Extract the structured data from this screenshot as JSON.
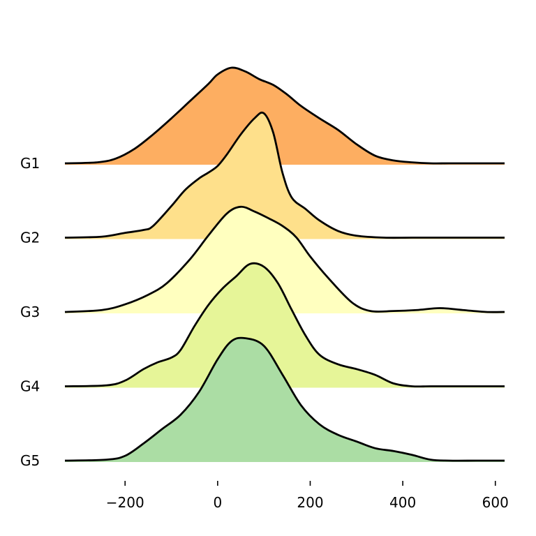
{
  "chart_data": {
    "type": "area",
    "subtype": "ridgeline",
    "title": "",
    "xlabel": "",
    "ylabel": "",
    "xlim": [
      -330,
      620
    ],
    "xticks": [
      -200,
      0,
      200,
      400,
      600
    ],
    "xtick_labels": [
      "−200",
      "0",
      "200",
      "400",
      "600"
    ],
    "grid": false,
    "categories": [
      "G1",
      "G2",
      "G3",
      "G4",
      "G5"
    ],
    "series": [
      {
        "name": "G1",
        "color": "#fdae61",
        "x": [
          -330,
          -260,
          -220,
          -180,
          -140,
          -100,
          -60,
          -20,
          0,
          30,
          60,
          90,
          120,
          150,
          180,
          220,
          260,
          300,
          340,
          380,
          420,
          460,
          500,
          560,
          620
        ],
        "y": [
          0,
          0.01,
          0.05,
          0.15,
          0.3,
          0.47,
          0.65,
          0.83,
          0.93,
          1.0,
          0.96,
          0.88,
          0.82,
          0.72,
          0.6,
          0.47,
          0.35,
          0.2,
          0.08,
          0.03,
          0.01,
          0,
          0,
          0,
          0
        ]
      },
      {
        "name": "G2",
        "color": "#fee08b",
        "x": [
          -330,
          -250,
          -200,
          -160,
          -140,
          -100,
          -70,
          -40,
          -20,
          0,
          20,
          50,
          80,
          100,
          120,
          140,
          160,
          190,
          220,
          260,
          300,
          360,
          420,
          500,
          620
        ],
        "y": [
          0,
          0.01,
          0.05,
          0.08,
          0.12,
          0.33,
          0.5,
          0.62,
          0.68,
          0.75,
          0.87,
          1.08,
          1.25,
          1.3,
          1.1,
          0.68,
          0.42,
          0.3,
          0.18,
          0.07,
          0.02,
          0,
          0,
          0,
          0
        ]
      },
      {
        "name": "G3",
        "color": "#ffffbf",
        "x": [
          -330,
          -250,
          -200,
          -150,
          -110,
          -60,
          -20,
          20,
          50,
          80,
          110,
          140,
          170,
          200,
          240,
          290,
          330,
          380,
          430,
          480,
          530,
          580,
          620
        ],
        "y": [
          0,
          0.02,
          0.08,
          0.18,
          0.3,
          0.55,
          0.8,
          1.03,
          1.1,
          1.05,
          0.98,
          0.9,
          0.78,
          0.58,
          0.35,
          0.1,
          0.01,
          0.01,
          0.02,
          0.04,
          0.02,
          0,
          0
        ]
      },
      {
        "name": "G4",
        "color": "#e6f598",
        "x": [
          -330,
          -240,
          -200,
          -160,
          -130,
          -100,
          -80,
          -50,
          -20,
          10,
          40,
          70,
          100,
          130,
          160,
          190,
          220,
          260,
          300,
          340,
          380,
          420,
          460,
          520,
          620
        ],
        "y": [
          0,
          0.01,
          0.06,
          0.18,
          0.25,
          0.3,
          0.38,
          0.63,
          0.85,
          1.02,
          1.15,
          1.28,
          1.25,
          1.08,
          0.8,
          0.53,
          0.33,
          0.23,
          0.18,
          0.12,
          0.03,
          0,
          0,
          0,
          0
        ]
      },
      {
        "name": "G5",
        "color": "#abdda4",
        "x": [
          -330,
          -240,
          -200,
          -160,
          -120,
          -80,
          -40,
          0,
          30,
          60,
          100,
          140,
          180,
          220,
          260,
          300,
          340,
          380,
          420,
          460,
          500,
          560,
          620
        ],
        "y": [
          0,
          0.01,
          0.05,
          0.18,
          0.33,
          0.48,
          0.72,
          1.06,
          1.25,
          1.28,
          1.2,
          0.9,
          0.58,
          0.38,
          0.27,
          0.2,
          0.13,
          0.1,
          0.06,
          0.01,
          0,
          0,
          0
        ]
      }
    ]
  }
}
